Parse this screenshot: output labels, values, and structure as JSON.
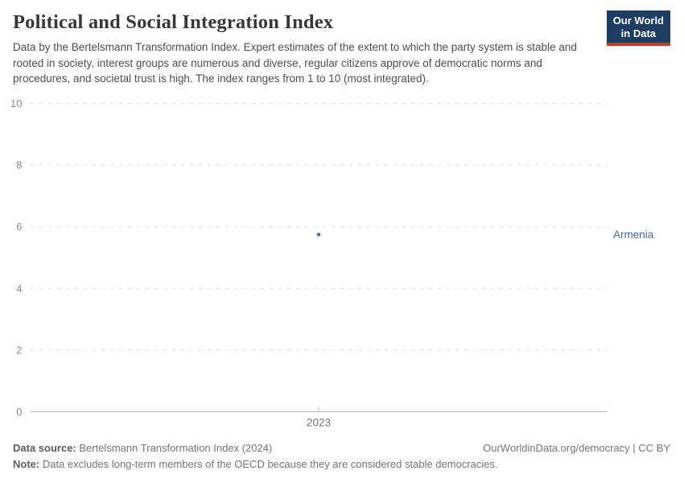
{
  "header": {
    "title": "Political and Social Integration Index",
    "subtitle": "Data by the Bertelsmann Transformation Index. Expert estimates of the extent to which the party system is stable and rooted in society, interest groups are numerous and diverse, regular citizens approve of democratic norms and procedures, and societal trust is high. The index ranges from 1 to 10 (most integrated).",
    "logo": {
      "line1": "Our World",
      "line2": "in Data"
    }
  },
  "chart_data": {
    "type": "scatter",
    "title": "Political and Social Integration Index",
    "x": [
      2023
    ],
    "xtick_labels": [
      "2023"
    ],
    "series": [
      {
        "name": "Armenia",
        "values": [
          5.75
        ],
        "color": "#4C6A9C"
      }
    ],
    "ylim": [
      0,
      10
    ],
    "yticks": [
      0,
      2,
      4,
      6,
      8,
      10
    ],
    "grid": "horizontal-dashed",
    "legend_position": "entity-label-right"
  },
  "colors": {
    "accent_blue": "#4C6A9C",
    "logo_navy": "#1d3d63",
    "logo_red": "#d0342c",
    "gridline": "#e2e2e2",
    "axis_line": "#b3b3b3",
    "ytick_label": "#8c8c8c",
    "xtick_label": "#757575"
  },
  "footer": {
    "data_source_label": "Data source:",
    "data_source_value": " Bertelsmann Transformation Index (2024)",
    "credit": "OurWorldinData.org/democracy | CC BY",
    "note_label": "Note:",
    "note_value": " Data excludes long-term members of the OECD because they are considered stable democracies."
  }
}
